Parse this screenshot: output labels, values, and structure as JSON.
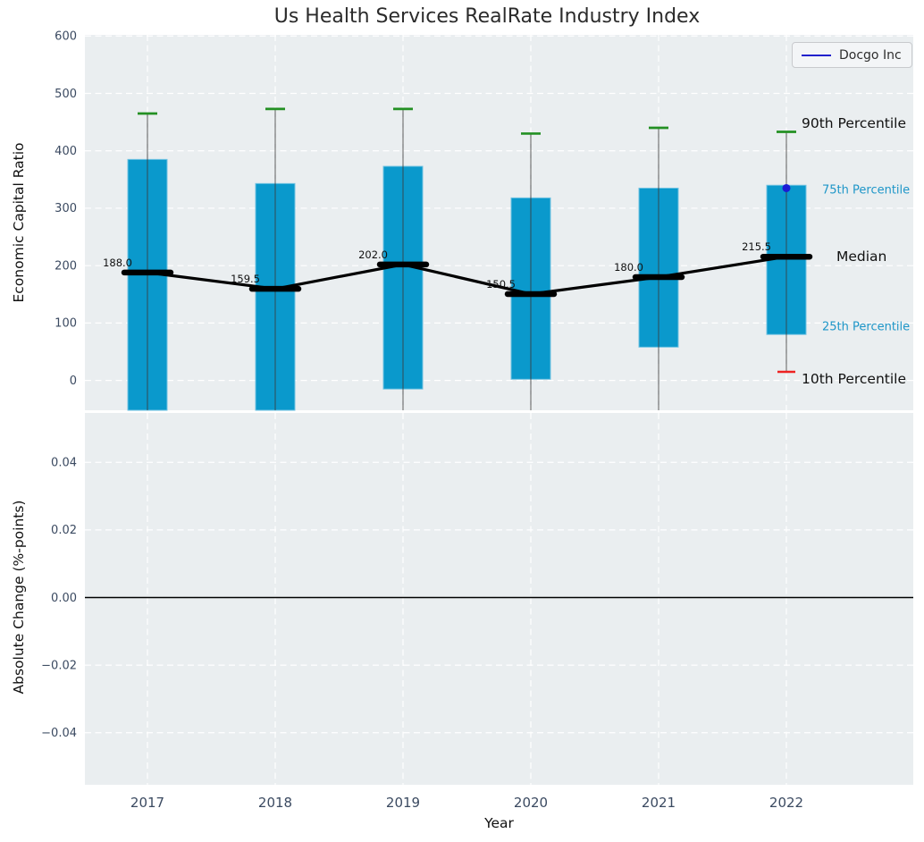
{
  "title": "Us Health Services RealRate Industry Index",
  "legend": {
    "label": "Docgo Inc",
    "line_color": "#2121cc"
  },
  "annotations": {
    "p90": "90th Percentile",
    "p75": "75th Percentile",
    "median": "Median",
    "p25": "25th Percentile",
    "p10": "10th Percentile"
  },
  "top_axis": {
    "ylabel": "Economic Capital Ratio",
    "yticks": [
      0,
      100,
      200,
      300,
      400,
      500,
      600
    ],
    "ylim": [
      -52,
      602
    ]
  },
  "bottom_axis": {
    "ylabel": "Absolute Change (%-points)",
    "ytick_labels": [
      "0.04",
      "0.02",
      "0.00",
      "−0.02",
      "−0.04"
    ],
    "ytick_values": [
      0.04,
      0.02,
      0,
      -0.02,
      -0.04
    ],
    "ylim": [
      -0.0554,
      0.0546
    ],
    "zero_line": 0
  },
  "x_axis": {
    "label": "Year",
    "ticks": [
      "2017",
      "2018",
      "2019",
      "2020",
      "2021",
      "2022"
    ]
  },
  "colors": {
    "bar": "#0a99cc",
    "bar_edge": "#72c3e2",
    "green_cap": "#239023",
    "red_cap": "#ee2222",
    "median": "#000000",
    "whisker": "rgba(60,60,60,0.6)",
    "docgo": "#1b1bd6",
    "plot_bg": "#eaeef0",
    "grid": "#ffffff",
    "tick": "#3b4a61",
    "text": "#111111",
    "blue_label": "#1e96c8"
  },
  "chart_data": [
    {
      "type": "bar",
      "title": "Us Health Services RealRate Industry Index",
      "xlabel": "Year",
      "ylabel": "Economic Capital Ratio",
      "ylim": [
        -52,
        602
      ],
      "grid": true,
      "legend_position": "upper right",
      "clip_note": "null values lie below the visible axis range (element clipped at plot bottom)",
      "categories": [
        2017,
        2018,
        2019,
        2020,
        2021,
        2022
      ],
      "series": [
        {
          "name": "90th Percentile",
          "values": [
            465,
            473,
            473,
            430,
            440,
            433
          ]
        },
        {
          "name": "75th Percentile",
          "values": [
            385,
            343,
            373,
            318,
            335,
            340
          ]
        },
        {
          "name": "Median",
          "values": [
            188.0,
            159.5,
            202.0,
            150.5,
            180.0,
            215.5
          ]
        },
        {
          "name": "25th Percentile",
          "values": [
            null,
            null,
            -15,
            2,
            58,
            80
          ]
        },
        {
          "name": "10th Percentile",
          "values": [
            null,
            null,
            null,
            null,
            null,
            15
          ]
        }
      ],
      "median_labels": [
        "188.0",
        "159.5",
        "202.0",
        "150.5",
        "180.0",
        "215.5"
      ],
      "docgo_point": {
        "name": "Docgo Inc",
        "x": 2022,
        "y": 335
      }
    },
    {
      "type": "line",
      "title": "",
      "xlabel": "Year",
      "ylabel": "Absolute Change (%-points)",
      "ylim": [
        -0.0554,
        0.0546
      ],
      "grid": true,
      "series": [],
      "zero_line": 0.0
    }
  ]
}
